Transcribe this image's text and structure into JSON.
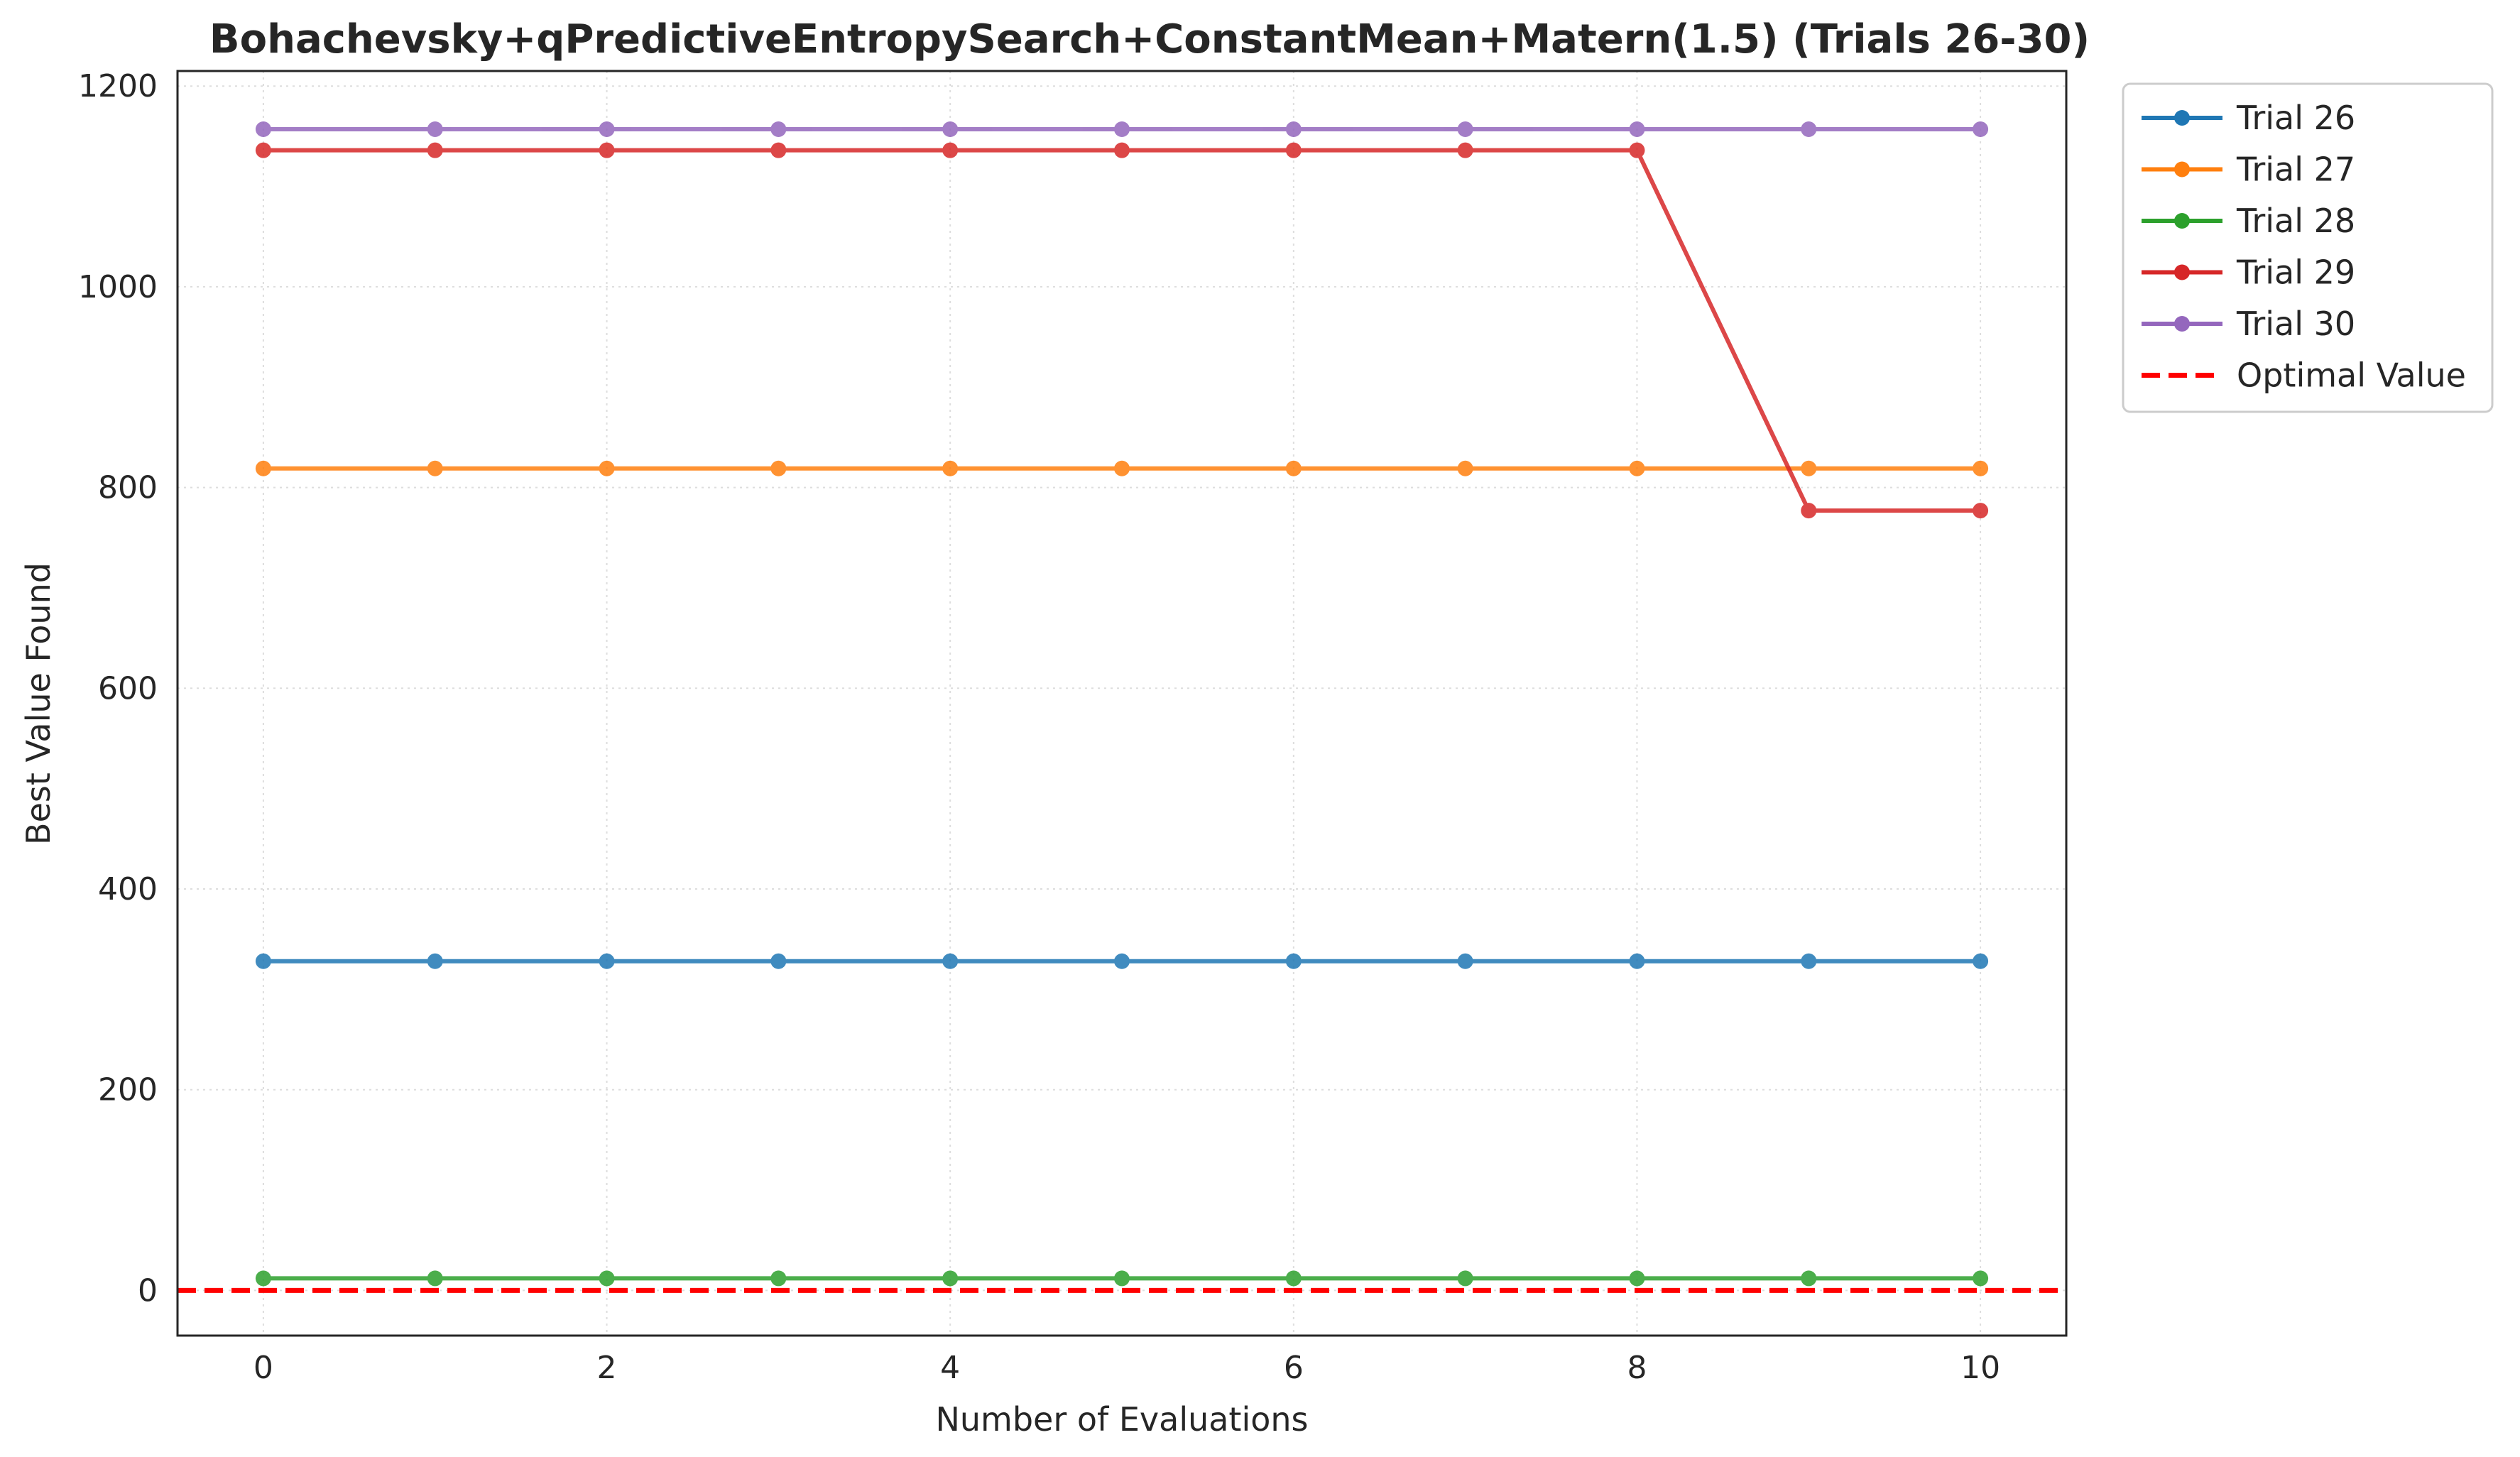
{
  "chart_data": {
    "type": "line",
    "title": "Bohachevsky+qPredictiveEntropySearch+ConstantMean+Matern(1.5) (Trials 26-30)",
    "xlabel": "Number of Evaluations",
    "ylabel": "Best Value Found",
    "xlim": [
      -0.5,
      10.5
    ],
    "ylim": [
      -45,
      1215
    ],
    "xticks": [
      0,
      2,
      4,
      6,
      8,
      10
    ],
    "yticks": [
      0,
      200,
      400,
      600,
      800,
      1000,
      1200
    ],
    "grid": true,
    "legend_position": "outside right, top",
    "x": [
      0,
      1,
      2,
      3,
      4,
      5,
      6,
      7,
      8,
      9,
      10
    ],
    "series": [
      {
        "name": "Trial 26",
        "color": "#1f77b4",
        "values": [
          328,
          328,
          328,
          328,
          328,
          328,
          328,
          328,
          328,
          328,
          328
        ]
      },
      {
        "name": "Trial 27",
        "color": "#ff7f0e",
        "values": [
          819,
          819,
          819,
          819,
          819,
          819,
          819,
          819,
          819,
          819,
          819
        ]
      },
      {
        "name": "Trial 28",
        "color": "#2ca02c",
        "values": [
          12,
          12,
          12,
          12,
          12,
          12,
          12,
          12,
          12,
          12,
          12
        ]
      },
      {
        "name": "Trial 29",
        "color": "#d62728",
        "values": [
          1136,
          1136,
          1136,
          1136,
          1136,
          1136,
          1136,
          1136,
          1136,
          777,
          777
        ]
      },
      {
        "name": "Trial 30",
        "color": "#9467bd",
        "values": [
          1157,
          1157,
          1157,
          1157,
          1157,
          1157,
          1157,
          1157,
          1157,
          1157,
          1157
        ]
      }
    ],
    "reference_line": {
      "name": "Optimal Value",
      "y": 0,
      "color": "#ff0000",
      "style": "dashed"
    }
  }
}
